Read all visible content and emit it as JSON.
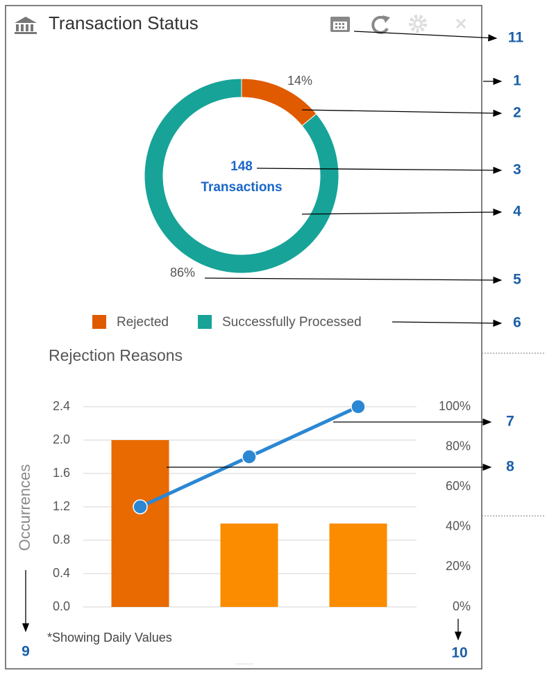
{
  "header": {
    "title": "Transaction Status"
  },
  "chart_data": [
    {
      "type": "donut",
      "categories": [
        "Rejected",
        "Successfully Processed"
      ],
      "values": [
        14,
        86
      ],
      "value_labels": [
        "14%",
        "86%"
      ],
      "colors": [
        "#e05a00",
        "#17a398"
      ],
      "center_value": 148,
      "center_label": "Transactions",
      "legend": "bottom"
    },
    {
      "type": "bar",
      "title": "Rejection Reasons",
      "y_label": "Occurrences",
      "categories": [
        null,
        null,
        null
      ],
      "series": [
        {
          "values": [
            2,
            1,
            1
          ],
          "colors": [
            "#e86a00",
            "#fb8c00",
            "#fb8c00"
          ]
        },
        {
          "type": "line",
          "axis": "y2",
          "color": "#2b87d3",
          "values": [
            50,
            75,
            100
          ]
        }
      ],
      "ylim": [
        0,
        2.4
      ],
      "yticks": [
        {
          "value": 0,
          "label": "0.0"
        },
        {
          "value": 0.4,
          "label": "0.4"
        },
        {
          "value": 0.8,
          "label": "0.8"
        },
        {
          "value": 1.2,
          "label": "1.2"
        },
        {
          "value": 1.6,
          "label": "1.6"
        },
        {
          "value": 2,
          "label": "2.0"
        },
        {
          "value": 2.4,
          "label": "2.4"
        }
      ],
      "y2lim": [
        0,
        100
      ],
      "y2ticks": [
        {
          "value": 0,
          "label": "0%"
        },
        {
          "value": 20,
          "label": "20%"
        },
        {
          "value": 40,
          "label": "40%"
        },
        {
          "value": 60,
          "label": "60%"
        },
        {
          "value": 80,
          "label": "80%"
        },
        {
          "value": 100,
          "label": "100%"
        }
      ],
      "grid": true
    }
  ],
  "footnote": "*Showing Daily Values",
  "callouts": [
    11,
    1,
    2,
    3,
    4,
    5,
    6,
    7,
    8,
    9,
    10
  ]
}
